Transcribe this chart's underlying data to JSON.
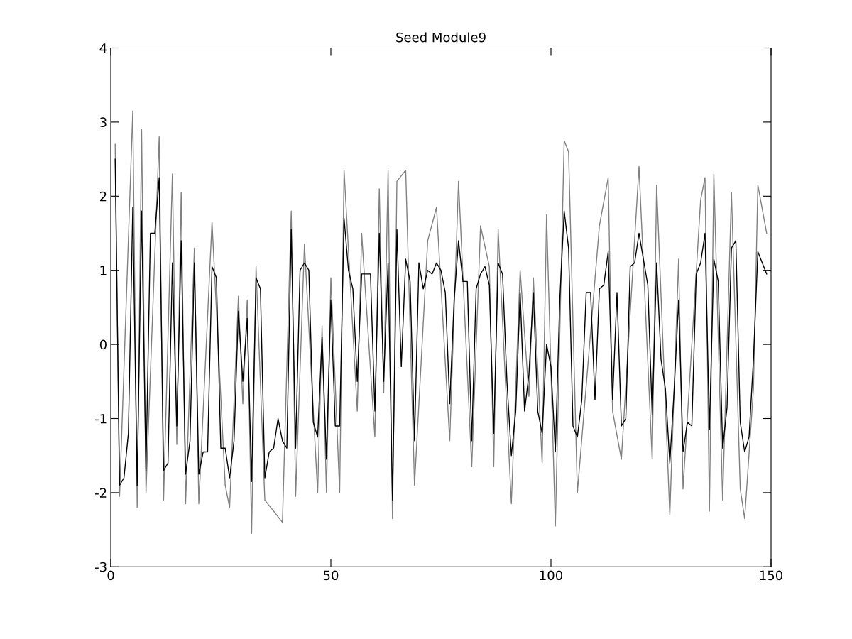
{
  "chart_data": {
    "type": "line",
    "title": "Seed Module9",
    "xlim": [
      0,
      150
    ],
    "xticks": [
      0,
      50,
      100,
      150
    ],
    "ylim": [
      -3,
      4
    ],
    "yticks": [
      -3,
      -2,
      -1,
      0,
      1,
      2,
      3,
      4
    ],
    "grid": false,
    "legend": false,
    "marker": "none",
    "line_style": "solid",
    "series": [
      {
        "color": "#808080",
        "x": [
          1,
          2,
          5,
          6,
          7,
          8,
          11,
          12,
          14,
          15,
          16,
          17,
          19,
          20,
          23,
          26,
          27,
          29,
          30,
          31,
          32,
          33,
          35,
          39,
          41,
          42,
          44,
          47,
          48,
          49,
          50,
          52,
          53,
          56,
          57,
          60,
          61,
          62,
          63,
          64,
          65,
          67,
          69,
          72,
          74,
          77,
          79,
          82,
          84,
          86,
          87,
          88,
          91,
          93,
          95,
          96,
          98,
          99,
          101,
          103,
          104,
          106,
          111,
          113,
          114,
          116,
          120,
          123,
          124,
          127,
          129,
          130,
          134,
          135,
          136,
          137,
          139,
          141,
          143,
          144,
          146,
          147,
          149
        ],
        "values": [
          2.7,
          -2.05,
          3.15,
          -2.2,
          2.9,
          -2.0,
          2.8,
          -2.1,
          2.3,
          -1.35,
          2.05,
          -2.15,
          1.3,
          -2.15,
          1.65,
          -1.9,
          -2.2,
          0.65,
          -0.8,
          0.6,
          -2.55,
          1.05,
          -2.1,
          -2.4,
          1.8,
          -2.05,
          1.35,
          -2.0,
          0.25,
          -2.0,
          0.9,
          -2.0,
          2.35,
          -0.9,
          1.5,
          -1.25,
          2.1,
          -0.65,
          2.35,
          -2.35,
          2.2,
          2.35,
          -1.9,
          1.4,
          1.85,
          -1.3,
          2.2,
          -1.65,
          1.6,
          1.05,
          -1.65,
          1.55,
          -2.15,
          1.0,
          -0.7,
          0.9,
          -1.6,
          1.75,
          -2.45,
          2.75,
          2.6,
          -2.0,
          1.6,
          2.25,
          -0.9,
          -1.55,
          2.4,
          -1.55,
          2.15,
          -2.3,
          1.15,
          -1.95,
          1.95,
          2.25,
          -2.25,
          2.3,
          -2.1,
          2.05,
          -1.95,
          -2.35,
          -0.6,
          2.15,
          1.5
        ]
      },
      {
        "color": "#000000",
        "x": [
          1,
          2,
          3,
          4,
          5,
          6,
          7,
          8,
          9,
          10,
          11,
          12,
          13,
          14,
          15,
          16,
          17,
          18,
          19,
          20,
          21,
          22,
          23,
          24,
          25,
          26,
          27,
          28,
          29,
          30,
          31,
          32,
          33,
          34,
          35,
          36,
          37,
          38,
          39,
          40,
          41,
          42,
          43,
          44,
          45,
          46,
          47,
          48,
          49,
          50,
          51,
          52,
          53,
          54,
          55,
          56,
          57,
          58,
          59,
          60,
          61,
          62,
          63,
          64,
          65,
          66,
          67,
          68,
          69,
          70,
          71,
          72,
          73,
          74,
          75,
          76,
          77,
          78,
          79,
          80,
          81,
          82,
          83,
          84,
          85,
          86,
          87,
          88,
          89,
          90,
          91,
          92,
          93,
          94,
          95,
          96,
          97,
          98,
          99,
          100,
          101,
          102,
          103,
          104,
          105,
          106,
          107,
          108,
          109,
          110,
          111,
          112,
          113,
          114,
          115,
          116,
          117,
          118,
          119,
          120,
          121,
          122,
          123,
          124,
          125,
          126,
          127,
          128,
          129,
          130,
          131,
          132,
          133,
          134,
          135,
          136,
          137,
          138,
          139,
          140,
          141,
          142,
          143,
          144,
          145,
          146,
          147,
          148,
          149
        ],
        "values": [
          2.5,
          -1.9,
          -1.8,
          -1.2,
          1.85,
          -1.9,
          1.8,
          -1.7,
          1.5,
          1.5,
          2.25,
          -1.7,
          -1.6,
          1.1,
          -1.1,
          1.4,
          -1.75,
          -1.3,
          1.1,
          -1.75,
          -1.45,
          -1.45,
          1.05,
          0.9,
          -1.4,
          -1.4,
          -1.8,
          -1.3,
          0.45,
          -0.5,
          0.35,
          -1.85,
          0.9,
          0.75,
          -1.8,
          -1.45,
          -1.4,
          -1.0,
          -1.3,
          -1.4,
          1.55,
          -1.4,
          1.0,
          1.1,
          1.0,
          -1.05,
          -1.25,
          0.1,
          -1.55,
          0.6,
          -1.1,
          -1.1,
          1.7,
          1.0,
          0.75,
          -0.5,
          0.95,
          0.95,
          0.95,
          -0.9,
          1.5,
          -0.5,
          1.1,
          -2.1,
          1.55,
          -0.3,
          1.15,
          0.85,
          -1.3,
          1.1,
          0.75,
          1.0,
          0.95,
          1.1,
          1.0,
          0.7,
          -0.8,
          0.6,
          1.4,
          0.85,
          0.85,
          -1.3,
          0.75,
          0.95,
          1.05,
          0.8,
          -1.2,
          1.1,
          0.95,
          -0.5,
          -1.5,
          -0.9,
          0.7,
          -0.9,
          -0.4,
          0.7,
          -0.9,
          -1.2,
          0.0,
          -0.3,
          -1.45,
          0.6,
          1.8,
          1.3,
          -1.1,
          -1.25,
          -0.75,
          0.7,
          0.7,
          -0.75,
          0.75,
          0.8,
          1.25,
          -0.75,
          0.7,
          -1.1,
          -1.0,
          1.05,
          1.1,
          1.5,
          1.15,
          0.8,
          -0.95,
          1.1,
          -0.2,
          -0.6,
          -1.6,
          -0.6,
          0.6,
          -1.45,
          -1.05,
          -1.1,
          0.95,
          1.1,
          1.5,
          -1.15,
          1.15,
          0.85,
          -1.4,
          -0.85,
          1.3,
          1.4,
          -1.05,
          -1.45,
          -1.25,
          -0.2,
          1.25,
          1.1,
          0.95
        ]
      }
    ]
  }
}
